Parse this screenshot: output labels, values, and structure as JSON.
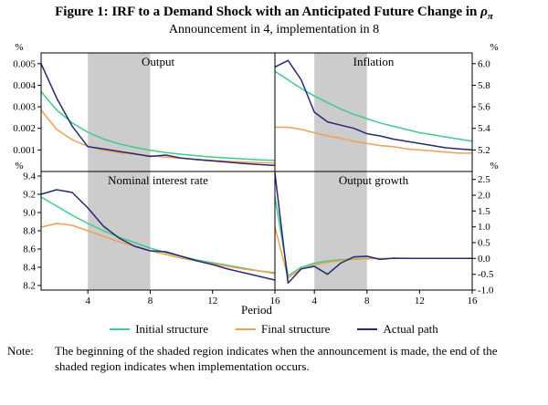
{
  "figure": {
    "title_prefix": "Figure 1: IRF to a Demand Shock with an Anticipated Future Change in ",
    "title_symbol": "ρ",
    "title_symbol_sub": "π",
    "subtitle": "Announcement in 4, implementation in 8",
    "xlabel": "Period",
    "note_label": "Note:",
    "note_text": "The beginning of the shaded region indicates when the announcement is made, the end of the shaded region indicates when implementation occurs."
  },
  "legend": [
    {
      "label": "Initial structure",
      "color": "#3ecb8d"
    },
    {
      "label": "Final structure",
      "color": "#f49e53"
    },
    {
      "label": "Actual path",
      "color": "#262a72"
    }
  ],
  "colors": {
    "shaded_region": "#cccccc",
    "axis": "#000000",
    "background": "#ffffff"
  },
  "chart_data": [
    {
      "type": "line",
      "title": "Output",
      "position": "top-left",
      "unit": "%",
      "xlim": [
        1,
        16
      ],
      "x": [
        1,
        2,
        3,
        4,
        5,
        6,
        7,
        8,
        9,
        10,
        11,
        12,
        13,
        14,
        15,
        16
      ],
      "x_ticks": [
        {
          "v": 4,
          "label": "4"
        },
        {
          "v": 8,
          "label": "8"
        },
        {
          "v": 12,
          "label": "12"
        },
        {
          "v": 16,
          "label": "16"
        }
      ],
      "ylim": [
        0,
        0.0055
      ],
      "y_ticks": [
        {
          "v": 0.005,
          "label": "0.005"
        },
        {
          "v": 0.004,
          "label": "0.004"
        },
        {
          "v": 0.003,
          "label": "0.003"
        },
        {
          "v": 0.002,
          "label": "0.002"
        },
        {
          "v": 0.001,
          "label": "0.001"
        }
      ],
      "shaded_region": [
        4,
        8
      ],
      "series": [
        {
          "name": "Initial structure",
          "values": [
            0.0037,
            0.00285,
            0.00225,
            0.00182,
            0.0015,
            0.00128,
            0.00112,
            0.00098,
            0.00088,
            0.0008,
            0.00073,
            0.00067,
            0.00062,
            0.00058,
            0.00054,
            0.00051
          ]
        },
        {
          "name": "Final structure",
          "values": [
            0.00285,
            0.00195,
            0.00147,
            0.00117,
            0.00098,
            0.00088,
            0.0008,
            0.00073,
            0.00067,
            0.00061,
            0.00056,
            0.00051,
            0.00047,
            0.00044,
            0.00041,
            0.00039
          ]
        },
        {
          "name": "Actual path",
          "values": [
            0.005,
            0.0034,
            0.0021,
            0.00115,
            0.00105,
            0.00093,
            0.00082,
            0.0007,
            0.00076,
            0.00062,
            0.00055,
            0.00049,
            0.00043,
            0.00037,
            0.00032,
            0.00028
          ]
        }
      ]
    },
    {
      "type": "line",
      "title": "Inflation",
      "position": "top-right",
      "unit": "%",
      "xlim": [
        1,
        16
      ],
      "x": [
        1,
        2,
        3,
        4,
        5,
        6,
        7,
        8,
        9,
        10,
        11,
        12,
        13,
        14,
        15,
        16
      ],
      "x_ticks": [
        {
          "v": 4,
          "label": "4"
        },
        {
          "v": 8,
          "label": "8"
        },
        {
          "v": 12,
          "label": "12"
        },
        {
          "v": 16,
          "label": "16"
        }
      ],
      "ylim": [
        5.0,
        6.1
      ],
      "y_ticks": [
        {
          "v": 6.0,
          "label": "6.0"
        },
        {
          "v": 5.8,
          "label": "5.8"
        },
        {
          "v": 5.6,
          "label": "5.6"
        },
        {
          "v": 5.4,
          "label": "5.4"
        },
        {
          "v": 5.2,
          "label": "5.2"
        }
      ],
      "shaded_region": [
        4,
        8
      ],
      "series": [
        {
          "name": "Initial structure",
          "values": [
            5.93,
            5.85,
            5.77,
            5.7,
            5.64,
            5.58,
            5.53,
            5.49,
            5.45,
            5.42,
            5.39,
            5.36,
            5.34,
            5.32,
            5.3,
            5.28
          ]
        },
        {
          "name": "Final structure",
          "values": [
            5.41,
            5.41,
            5.39,
            5.36,
            5.33,
            5.31,
            5.28,
            5.26,
            5.24,
            5.23,
            5.21,
            5.2,
            5.19,
            5.18,
            5.17,
            5.17
          ]
        },
        {
          "name": "Actual path",
          "values": [
            5.97,
            6.03,
            5.85,
            5.55,
            5.46,
            5.43,
            5.4,
            5.35,
            5.33,
            5.3,
            5.28,
            5.26,
            5.24,
            5.22,
            5.21,
            5.2
          ]
        }
      ]
    },
    {
      "type": "line",
      "title": "Nominal interest rate",
      "position": "bottom-left",
      "unit": "%",
      "xlim": [
        1,
        16
      ],
      "x": [
        1,
        2,
        3,
        4,
        5,
        6,
        7,
        8,
        9,
        10,
        11,
        12,
        13,
        14,
        15,
        16
      ],
      "x_ticks": [
        {
          "v": 4,
          "label": "4"
        },
        {
          "v": 8,
          "label": "8"
        },
        {
          "v": 12,
          "label": "12"
        },
        {
          "v": 16,
          "label": "16"
        }
      ],
      "ylim": [
        8.15,
        9.45
      ],
      "y_ticks": [
        {
          "v": 9.4,
          "label": "9.4"
        },
        {
          "v": 9.2,
          "label": "9.2"
        },
        {
          "v": 9.0,
          "label": "9.0"
        },
        {
          "v": 8.8,
          "label": "8.8"
        },
        {
          "v": 8.6,
          "label": "8.6"
        },
        {
          "v": 8.4,
          "label": "8.4"
        },
        {
          "v": 8.2,
          "label": "8.2"
        }
      ],
      "shaded_region": [
        4,
        8
      ],
      "series": [
        {
          "name": "Initial structure",
          "values": [
            9.17,
            9.07,
            8.97,
            8.88,
            8.8,
            8.73,
            8.67,
            8.61,
            8.56,
            8.52,
            8.48,
            8.45,
            8.42,
            8.39,
            8.36,
            8.34
          ]
        },
        {
          "name": "Final structure",
          "values": [
            8.84,
            8.88,
            8.86,
            8.8,
            8.74,
            8.68,
            8.63,
            8.58,
            8.54,
            8.5,
            8.47,
            8.44,
            8.41,
            8.38,
            8.36,
            8.33
          ]
        },
        {
          "name": "Actual path",
          "values": [
            9.2,
            9.25,
            9.22,
            9.05,
            8.85,
            8.72,
            8.63,
            8.58,
            8.57,
            8.52,
            8.47,
            8.43,
            8.38,
            8.34,
            8.3,
            8.26
          ]
        }
      ]
    },
    {
      "type": "line",
      "title": "Output growth",
      "position": "bottom-right",
      "unit": "%",
      "xlim": [
        1,
        16
      ],
      "x": [
        1,
        2,
        3,
        4,
        5,
        6,
        7,
        8,
        9,
        10,
        11,
        12,
        13,
        14,
        15,
        16
      ],
      "x_ticks": [
        {
          "v": 4,
          "label": "4"
        },
        {
          "v": 8,
          "label": "8"
        },
        {
          "v": 12,
          "label": "12"
        },
        {
          "v": 16,
          "label": "16"
        }
      ],
      "ylim": [
        -1.0,
        2.75
      ],
      "y_ticks": [
        {
          "v": 2.5,
          "label": "2.5"
        },
        {
          "v": 2.0,
          "label": "2.0"
        },
        {
          "v": 1.5,
          "label": "1.5"
        },
        {
          "v": 1.0,
          "label": "1.0"
        },
        {
          "v": 0.5,
          "label": "0.5"
        },
        {
          "v": 0.0,
          "label": "0.0"
        },
        {
          "v": -0.5,
          "label": "-0.5"
        },
        {
          "v": -1.0,
          "label": "-1.0"
        }
      ],
      "shaded_region": [
        4,
        8
      ],
      "series": [
        {
          "name": "Initial structure",
          "values": [
            1.95,
            -0.55,
            -0.28,
            -0.15,
            -0.08,
            -0.04,
            -0.01,
            0,
            0,
            0,
            0,
            0,
            0,
            0,
            0,
            0
          ]
        },
        {
          "name": "Final structure",
          "values": [
            1.0,
            -0.62,
            -0.33,
            -0.2,
            -0.12,
            -0.07,
            -0.03,
            -0.01,
            0,
            0,
            0,
            0,
            0,
            0,
            0,
            0
          ]
        },
        {
          "name": "Actual path",
          "values": [
            2.7,
            -0.78,
            -0.33,
            -0.25,
            -0.5,
            -0.15,
            0.05,
            0.07,
            -0.03,
            0.01,
            0,
            0,
            0,
            0,
            0,
            0
          ]
        }
      ]
    }
  ]
}
